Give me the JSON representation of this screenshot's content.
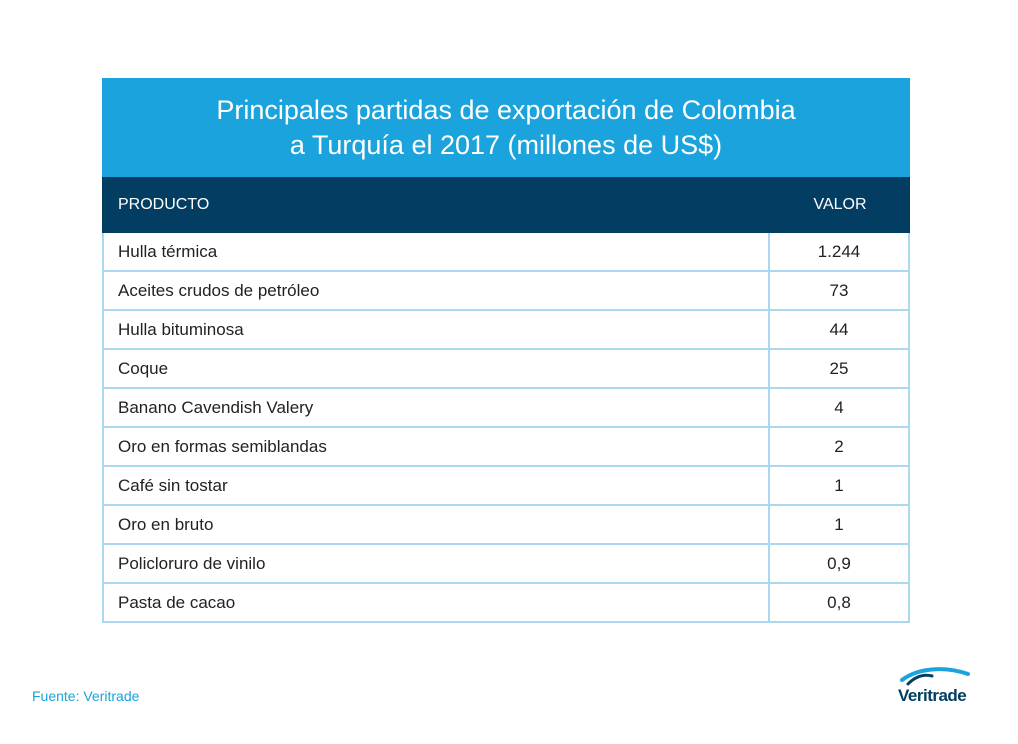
{
  "chart_data": {
    "type": "table",
    "title_line1": "Principales partidas de exportación de Colombia",
    "title_line2": "a Turquía el 2017 (millones de US$)",
    "columns": [
      "PRODUCTO",
      "VALOR"
    ],
    "rows": [
      {
        "product": "Hulla térmica",
        "value": "1.244"
      },
      {
        "product": "Aceites crudos de petróleo",
        "value": "73"
      },
      {
        "product": "Hulla bituminosa",
        "value": "44"
      },
      {
        "product": "Coque",
        "value": "25"
      },
      {
        "product": "Banano Cavendish Valery",
        "value": "4"
      },
      {
        "product": "Oro en formas semiblandas",
        "value": "2"
      },
      {
        "product": "Café sin tostar",
        "value": "1"
      },
      {
        "product": "Oro en bruto",
        "value": "1"
      },
      {
        "product": "Policloruro de vinilo",
        "value": "0,9"
      },
      {
        "product": "Pasta de cacao",
        "value": "0,8"
      }
    ]
  },
  "source": "Fuente: Veritrade",
  "logo_text": "Veritrade",
  "colors": {
    "title_band": "#1aa3dc",
    "header_row": "#033e62",
    "grid": "#a9d8f0",
    "source_text": "#1aa3dc"
  }
}
